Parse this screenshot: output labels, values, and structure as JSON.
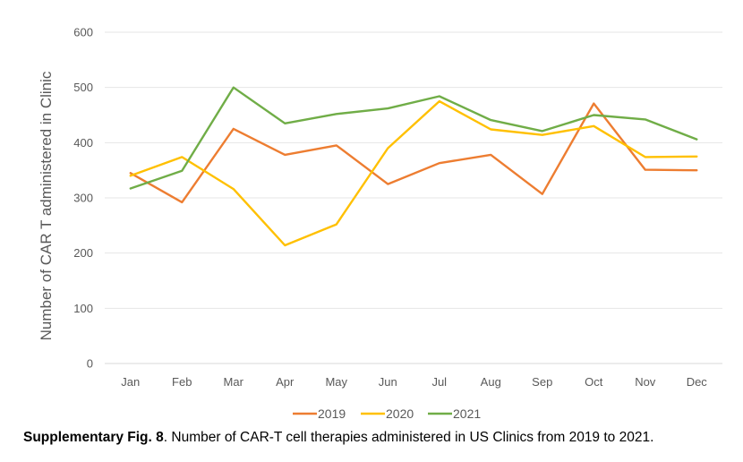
{
  "chart_data": {
    "type": "line",
    "categories": [
      "Jan",
      "Feb",
      "Mar",
      "Apr",
      "May",
      "Jun",
      "Jul",
      "Aug",
      "Sep",
      "Oct",
      "Nov",
      "Dec"
    ],
    "series": [
      {
        "name": "2019",
        "color": "#ED7D31",
        "values": [
          345,
          292,
          425,
          378,
          395,
          325,
          363,
          378,
          307,
          471,
          351,
          350
        ]
      },
      {
        "name": "2020",
        "color": "#FFC000",
        "values": [
          340,
          374,
          316,
          214,
          252,
          390,
          475,
          424,
          414,
          430,
          374,
          375
        ]
      },
      {
        "name": "2021",
        "color": "#70AD47",
        "values": [
          317,
          349,
          500,
          435,
          452,
          462,
          484,
          441,
          421,
          450,
          442,
          406
        ]
      }
    ],
    "ylabel": "Number of CAR T administered in Clinic",
    "xlabel": "",
    "ylim": [
      0,
      600
    ],
    "yticks": [
      0,
      100,
      200,
      300,
      400,
      500,
      600
    ],
    "grid": true,
    "legend": "bottom-center"
  },
  "caption": {
    "label": "Supplementary Fig. 8",
    "text": ". Number of CAR-T cell therapies administered in US Clinics from 2019 to 2021."
  }
}
